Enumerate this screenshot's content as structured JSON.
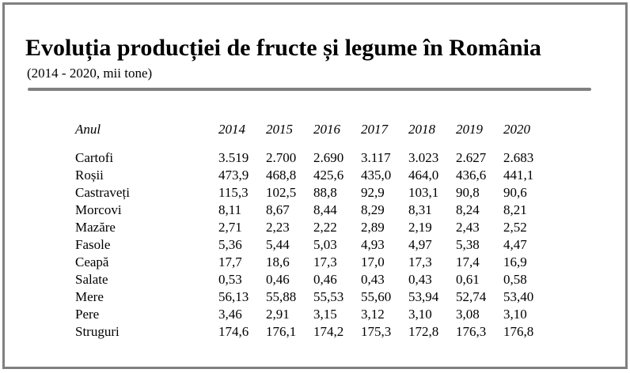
{
  "title": "Evoluția producției de fructe și legume în România",
  "subtitle": "(2014 - 2020, mii tone)",
  "table": {
    "header": {
      "label": "Anul",
      "years": [
        "2014",
        "2015",
        "2016",
        "2017",
        "2018",
        "2019",
        "2020"
      ]
    },
    "rows": [
      {
        "label": "Cartofi",
        "values": [
          "3.519",
          "2.700",
          "2.690",
          "3.117",
          "3.023",
          "2.627",
          "2.683"
        ]
      },
      {
        "label": "Roșii",
        "values": [
          "473,9",
          "468,8",
          "425,6",
          "435,0",
          "464,0",
          "436,6",
          "441,1"
        ]
      },
      {
        "label": "Castraveți",
        "values": [
          "115,3",
          "102,5",
          "88,8",
          "92,9",
          "103,1",
          "90,8",
          "90,6"
        ]
      },
      {
        "label": "Morcovi",
        "values": [
          "8,11",
          "8,67",
          "8,44",
          "8,29",
          "8,31",
          "8,24",
          "8,21"
        ]
      },
      {
        "label": "Mazăre",
        "values": [
          "2,71",
          "2,23",
          "2,22",
          "2,89",
          "2,19",
          "2,43",
          "2,52"
        ]
      },
      {
        "label": "Fasole",
        "values": [
          "5,36",
          "5,44",
          "5,03",
          "4,93",
          "4,97",
          "5,38",
          "4,47"
        ]
      },
      {
        "label": "Ceapă",
        "values": [
          "17,7",
          "18,6",
          "17,3",
          "17,0",
          "17,3",
          "17,4",
          "16,9"
        ]
      },
      {
        "label": "Salate",
        "values": [
          "0,53",
          "0,46",
          "0,46",
          "0,43",
          "0,43",
          "0,61",
          "0,58"
        ]
      },
      {
        "label": "Mere",
        "values": [
          "56,13",
          "55,88",
          "55,53",
          "55,60",
          "53,94",
          "52,74",
          "53,40"
        ]
      },
      {
        "label": "Pere",
        "values": [
          "3,46",
          "2,91",
          "3,15",
          "3,12",
          "3,10",
          "3,08",
          "3,10"
        ]
      },
      {
        "label": "Struguri",
        "values": [
          "174,6",
          "176,1",
          "174,2",
          "175,3",
          "172,8",
          "176,3",
          "176,8"
        ]
      }
    ]
  },
  "colors": {
    "frame": "#808080",
    "rule": "#808080",
    "text": "#000000",
    "background": "#ffffff"
  }
}
